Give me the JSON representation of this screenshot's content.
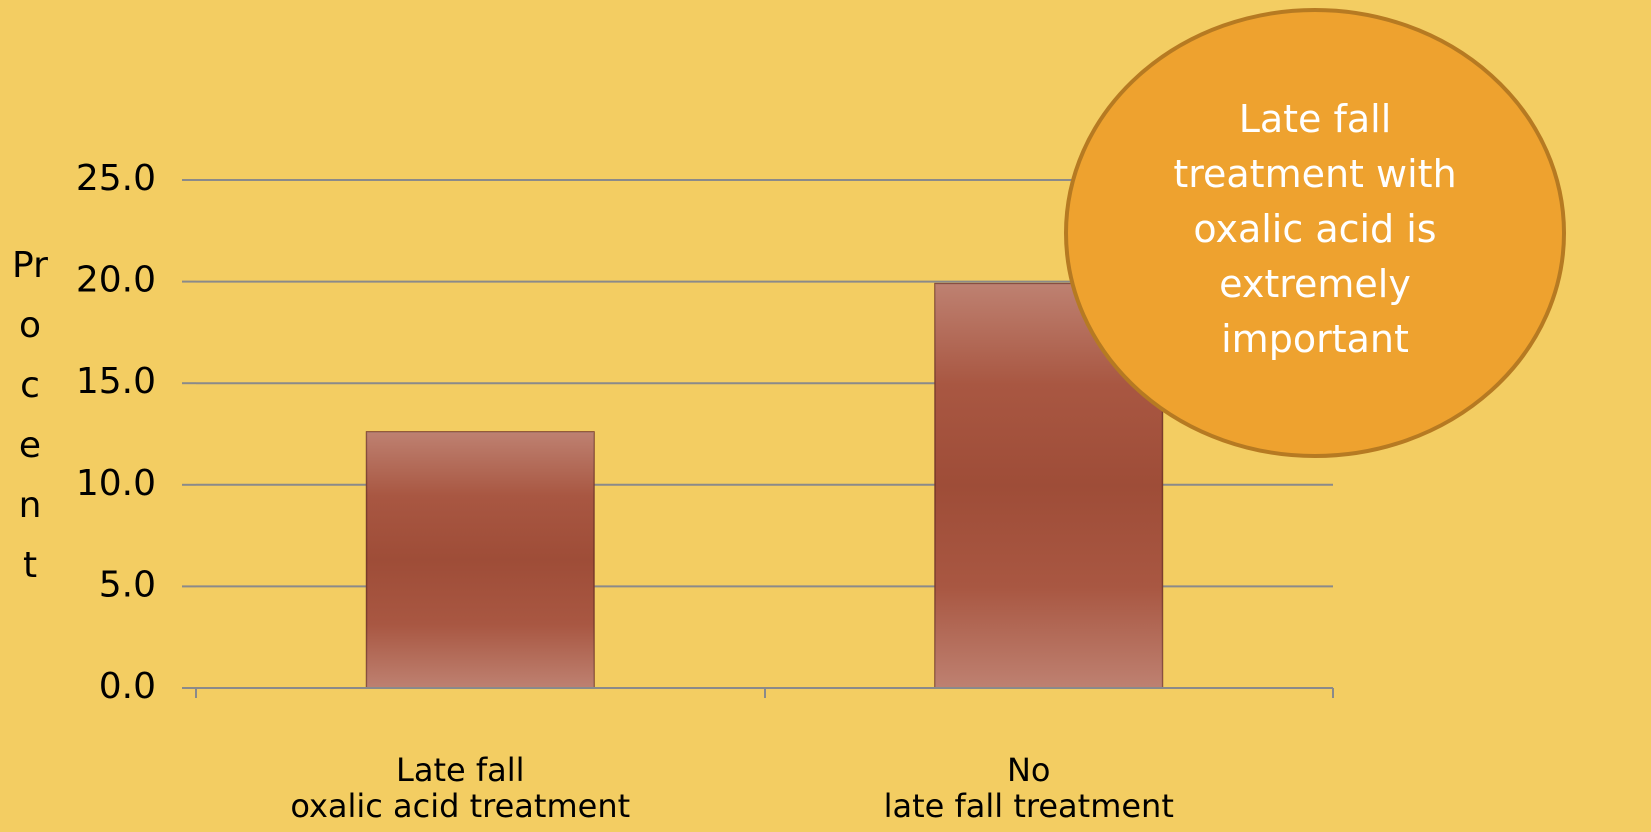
{
  "chart_data": {
    "type": "bar",
    "y_label": "Procent",
    "categories": [
      "Late fall\noxalic acid treatment",
      "No\nlate fall treatment"
    ],
    "values": [
      12.6,
      19.9
    ],
    "color": "#a5503a",
    "ylim": [
      0,
      25
    ],
    "yticks": [
      {
        "value": 0,
        "label": "0.0"
      },
      {
        "value": 5,
        "label": "5.0"
      },
      {
        "value": 10,
        "label": "10.0"
      },
      {
        "value": 15,
        "label": "15.0"
      },
      {
        "value": 20,
        "label": "20.0"
      },
      {
        "value": 25,
        "label": "25.0"
      }
    ],
    "grid": true,
    "annotation": "Late fall\ntreatment with\noxalic acid is\nextremely\nimportant"
  }
}
